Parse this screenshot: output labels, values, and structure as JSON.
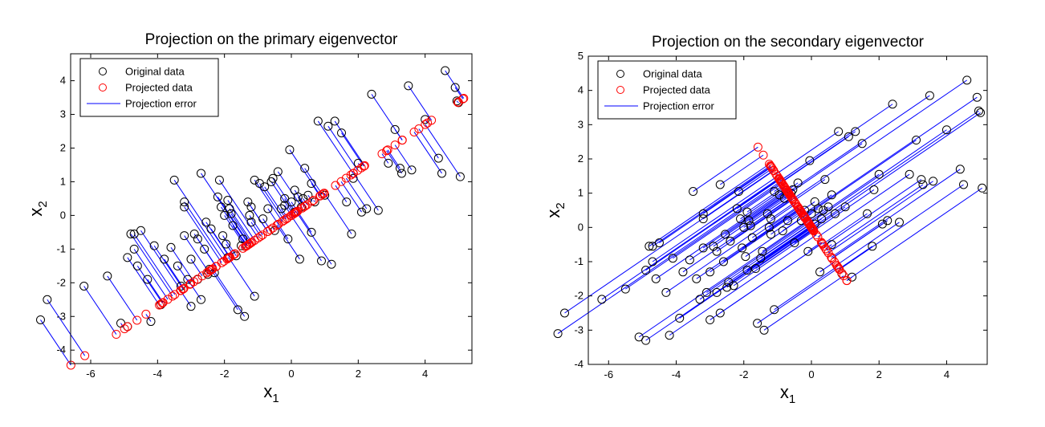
{
  "chart_data": [
    {
      "type": "scatter",
      "title": "Projection on the primary eigenvector",
      "xlabel_base": "x",
      "xlabel_sub": "1",
      "ylabel_base": "x",
      "ylabel_sub": "2",
      "xlim": [
        -6.6,
        5.4
      ],
      "ylim": [
        -4.4,
        4.8
      ],
      "xticks": [
        -6,
        -4,
        -2,
        0,
        2,
        4
      ],
      "yticks": [
        -4,
        -3,
        -2,
        -1,
        0,
        1,
        2,
        3,
        4
      ],
      "grid": false,
      "legend": {
        "position": "top-left",
        "entries": [
          "Original data",
          "Projected data",
          "Projection error"
        ]
      },
      "series": [
        {
          "name": "Original data",
          "marker": "circle",
          "color": "#000000"
        },
        {
          "name": "Projected data",
          "marker": "circle",
          "color": "#ff0000"
        },
        {
          "name": "Projection error",
          "marker": "line",
          "color": "#0000ff"
        }
      ]
    },
    {
      "type": "scatter",
      "title": "Projection on the secondary eigenvector",
      "xlabel_base": "x",
      "xlabel_sub": "1",
      "ylabel_base": "x",
      "ylabel_sub": "2",
      "xlim": [
        -6.6,
        5.2
      ],
      "ylim": [
        -4,
        5
      ],
      "xticks": [
        -6,
        -4,
        -2,
        0,
        2,
        4
      ],
      "yticks": [
        -4,
        -3,
        -2,
        -1,
        0,
        1,
        2,
        3,
        4,
        5
      ],
      "grid": false,
      "legend": {
        "position": "top-left",
        "entries": [
          "Original data",
          "Projected data",
          "Projection error"
        ]
      },
      "series": [
        {
          "name": "Original data",
          "marker": "circle",
          "color": "#000000"
        },
        {
          "name": "Projected data",
          "marker": "circle",
          "color": "#ff0000"
        },
        {
          "name": "Projection error",
          "marker": "line",
          "color": "#0000ff"
        }
      ]
    }
  ],
  "original_points": [
    [
      -6.5,
      -3.1
    ],
    [
      -6.3,
      -2.5
    ],
    [
      -5.2,
      -2.1
    ],
    [
      -4.5,
      -1.8
    ],
    [
      -4.1,
      -3.2
    ],
    [
      -3.9,
      -3.3
    ],
    [
      -3.9,
      -1.25
    ],
    [
      -3.8,
      -0.55
    ],
    [
      -3.7,
      -0.55
    ],
    [
      -3.7,
      -1.0
    ],
    [
      -3.6,
      -1.5
    ],
    [
      -3.5,
      -0.45
    ],
    [
      -3.3,
      -1.9
    ],
    [
      -3.2,
      -3.15
    ],
    [
      -3.1,
      -0.9
    ],
    [
      -2.9,
      -2.65
    ],
    [
      -2.8,
      -1.3
    ],
    [
      -2.6,
      -0.95
    ],
    [
      -2.5,
      1.05
    ],
    [
      -2.3,
      -2.1
    ],
    [
      -2.4,
      -1.5
    ],
    [
      -2.2,
      0.25
    ],
    [
      -2.2,
      0.4
    ],
    [
      -2.2,
      -0.6
    ],
    [
      -2.1,
      -1.9
    ],
    [
      -2.0,
      -2.7
    ],
    [
      -2.0,
      -1.3
    ],
    [
      -1.9,
      -0.55
    ],
    [
      -1.8,
      -1.9
    ],
    [
      -1.8,
      -0.7
    ],
    [
      -1.7,
      -2.5
    ],
    [
      -1.7,
      1.25
    ],
    [
      -1.6,
      -1.0
    ],
    [
      -1.55,
      -0.2
    ],
    [
      -1.5,
      -1.75
    ],
    [
      -1.45,
      -1.6
    ],
    [
      -1.4,
      -0.4
    ],
    [
      -1.3,
      -1.7
    ],
    [
      -1.2,
      0.55
    ],
    [
      -1.15,
      1.05
    ],
    [
      -1.1,
      0.25
    ],
    [
      -1.0,
      0.0
    ],
    [
      -1.05,
      -0.6
    ],
    [
      -0.95,
      -0.85
    ],
    [
      -0.9,
      -1.25
    ],
    [
      -0.9,
      0.45
    ],
    [
      -0.85,
      0.2
    ],
    [
      -0.8,
      0.05
    ],
    [
      -0.75,
      -0.3
    ],
    [
      -0.65,
      -1.2
    ],
    [
      -0.6,
      -2.8
    ],
    [
      -0.5,
      -0.9
    ],
    [
      -0.45,
      -0.7
    ],
    [
      -0.4,
      -3.0
    ],
    [
      -0.3,
      0.4
    ],
    [
      -0.25,
      0.0
    ],
    [
      -0.2,
      -0.2
    ],
    [
      -0.2,
      0.25
    ],
    [
      -0.1,
      -2.4
    ],
    [
      -0.1,
      1.05
    ],
    [
      0.05,
      0.95
    ],
    [
      0.15,
      -0.1
    ],
    [
      0.2,
      0.85
    ],
    [
      0.3,
      0.2
    ],
    [
      0.4,
      1.0
    ],
    [
      0.45,
      1.1
    ],
    [
      0.5,
      -0.45
    ],
    [
      0.6,
      1.3
    ],
    [
      0.7,
      0.2
    ],
    [
      0.8,
      0.5
    ],
    [
      0.8,
      0.3
    ],
    [
      0.9,
      -0.7
    ],
    [
      0.95,
      1.95
    ],
    [
      1.0,
      0.4
    ],
    [
      1.1,
      0.1
    ],
    [
      1.1,
      0.75
    ],
    [
      1.2,
      0.55
    ],
    [
      1.25,
      -1.3
    ],
    [
      1.3,
      0.25
    ],
    [
      1.35,
      0.5
    ],
    [
      1.4,
      1.4
    ],
    [
      1.5,
      0.6
    ],
    [
      1.6,
      -0.5
    ],
    [
      1.6,
      0.95
    ],
    [
      1.7,
      0.4
    ],
    [
      1.8,
      2.8
    ],
    [
      1.9,
      -1.35
    ],
    [
      2.0,
      0.6
    ],
    [
      2.1,
      2.65
    ],
    [
      2.2,
      -1.45
    ],
    [
      2.3,
      2.8
    ],
    [
      2.5,
      2.45
    ],
    [
      2.65,
      0.4
    ],
    [
      2.8,
      -0.55
    ],
    [
      2.85,
      1.1
    ],
    [
      3.0,
      1.55
    ],
    [
      3.1,
      0.1
    ],
    [
      3.25,
      0.2
    ],
    [
      3.4,
      3.6
    ],
    [
      3.6,
      0.15
    ],
    [
      3.9,
      1.55
    ],
    [
      4.1,
      2.55
    ],
    [
      4.25,
      1.4
    ],
    [
      4.3,
      1.25
    ],
    [
      4.5,
      3.85
    ],
    [
      4.6,
      1.35
    ],
    [
      5.0,
      2.85
    ],
    [
      5.4,
      1.7
    ],
    [
      5.5,
      1.25
    ],
    [
      5.6,
      4.3
    ],
    [
      5.9,
      3.8
    ],
    [
      5.95,
      3.4
    ],
    [
      6.0,
      3.35
    ],
    [
      6.05,
      1.15
    ]
  ],
  "projection": {
    "primary_angle_deg": 34,
    "secondary_angle_deg": 124,
    "x_offset": -1.0
  }
}
